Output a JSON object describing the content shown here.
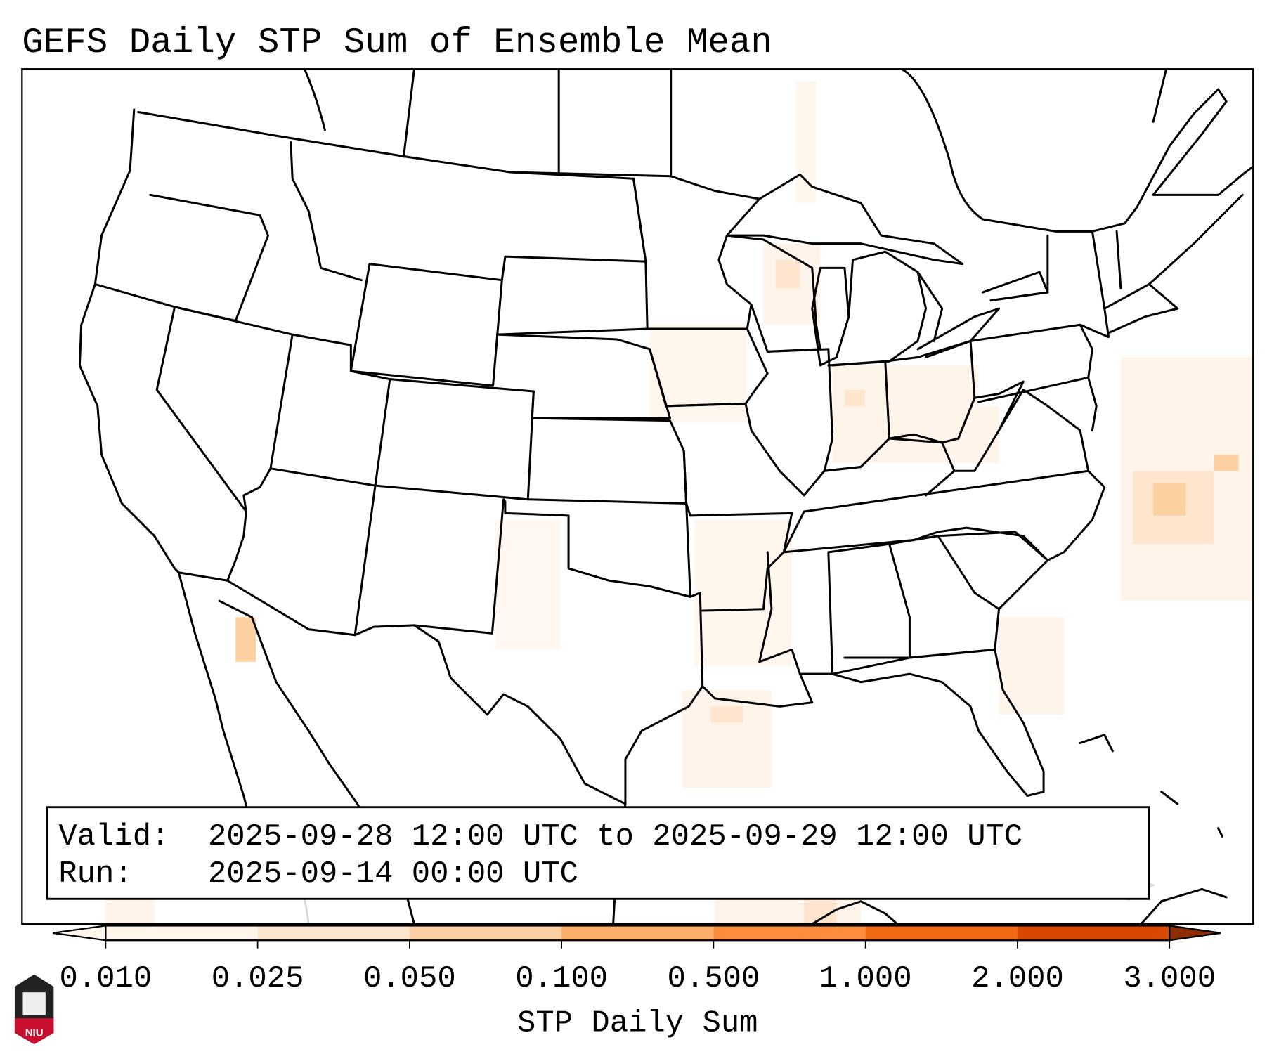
{
  "title": "GEFS Daily STP Sum of Ensemble Mean",
  "info_box": {
    "valid_label": "Valid:",
    "valid_value": "2025-09-28 12:00 UTC to 2025-09-29 12:00 UTC",
    "run_label": "Run:",
    "run_value": "2025-09-14 00:00 UTC"
  },
  "colorbar": {
    "label": "STP Daily Sum",
    "ticks": [
      "0.010",
      "0.025",
      "0.050",
      "0.100",
      "0.500",
      "1.000",
      "2.000",
      "3.000"
    ],
    "colors": [
      "#fff5eb",
      "#fee6ce",
      "#fdd0a2",
      "#fdae6b",
      "#fd8d3c",
      "#f16913",
      "#d94801",
      "#8c2d04"
    ],
    "extend": "both"
  },
  "logo": {
    "text": "NIU"
  }
}
